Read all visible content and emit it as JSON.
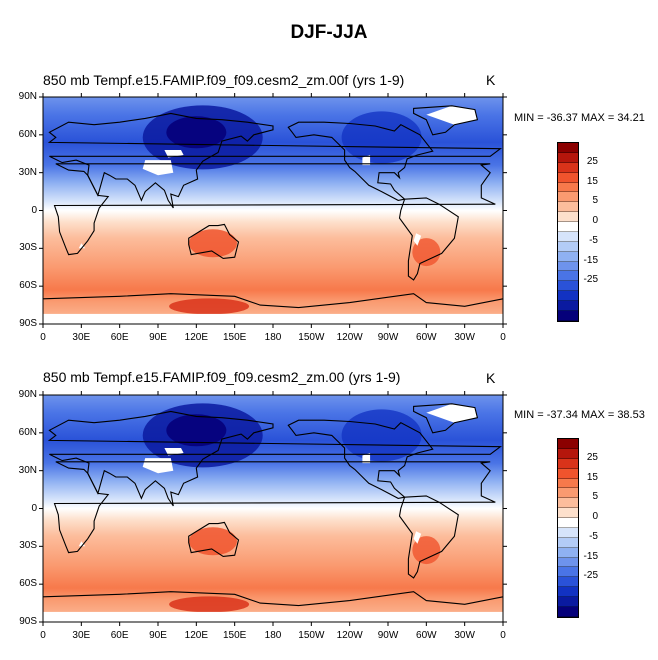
{
  "figure_title": "DJF-JJA",
  "colorbar": {
    "labels": [
      "25",
      "15",
      "5",
      "0",
      "-5",
      "-15",
      "-25"
    ],
    "colors": [
      "#8b0000",
      "#b5160c",
      "#d9331a",
      "#f0542d",
      "#f7794b",
      "#fa9a70",
      "#fcbd9c",
      "#fde0cc",
      "#ffffff",
      "#d6e4fb",
      "#b3ccf7",
      "#8fb1f2",
      "#6e93ec",
      "#4a74e6",
      "#2a52d8",
      "#1232c2",
      "#0a1aa0",
      "#05007a"
    ]
  },
  "panels": [
    {
      "title": "850 mb Tempf.e15.FAMIP.f09_f09.cesm2_zm.00f (yrs 1-9)",
      "unit": "K",
      "minmax": "MIN = -36.37 MAX =  34.21"
    },
    {
      "title": "850 mb Tempf.e15.FAMIP.f09_f09.cesm2_zm.00 (yrs 1-9)",
      "unit": "K",
      "minmax": "MIN = -37.34 MAX =  38.53"
    }
  ],
  "axes": {
    "lat_labels": [
      "90N",
      "60N",
      "30N",
      "0",
      "30S",
      "60S",
      "90S"
    ],
    "lon_labels": [
      "0",
      "30E",
      "60E",
      "90E",
      "120E",
      "150E",
      "180",
      "150W",
      "120W",
      "90W",
      "60W",
      "30W",
      "0"
    ]
  },
  "chart_data": {
    "type": "heatmap",
    "title": "DJF-JJA",
    "variable": "850 mb Temp",
    "units": "K",
    "contour_levels": [
      -30,
      -25,
      -20,
      -15,
      -10,
      -5,
      -2.5,
      0,
      2.5,
      5,
      10,
      15,
      20,
      25,
      30
    ],
    "xlim": [
      0,
      360
    ],
    "ylim": [
      -90,
      90
    ],
    "panels": [
      {
        "case": "f.e15.FAMIP.f09_f09.cesm2_zm.00f",
        "years": "1-9",
        "min": -36.37,
        "max": 34.21
      },
      {
        "case": "f.e15.FAMIP.f09_f09.cesm2_zm.00",
        "years": "1-9",
        "min": -37.34,
        "max": 38.53
      }
    ]
  }
}
